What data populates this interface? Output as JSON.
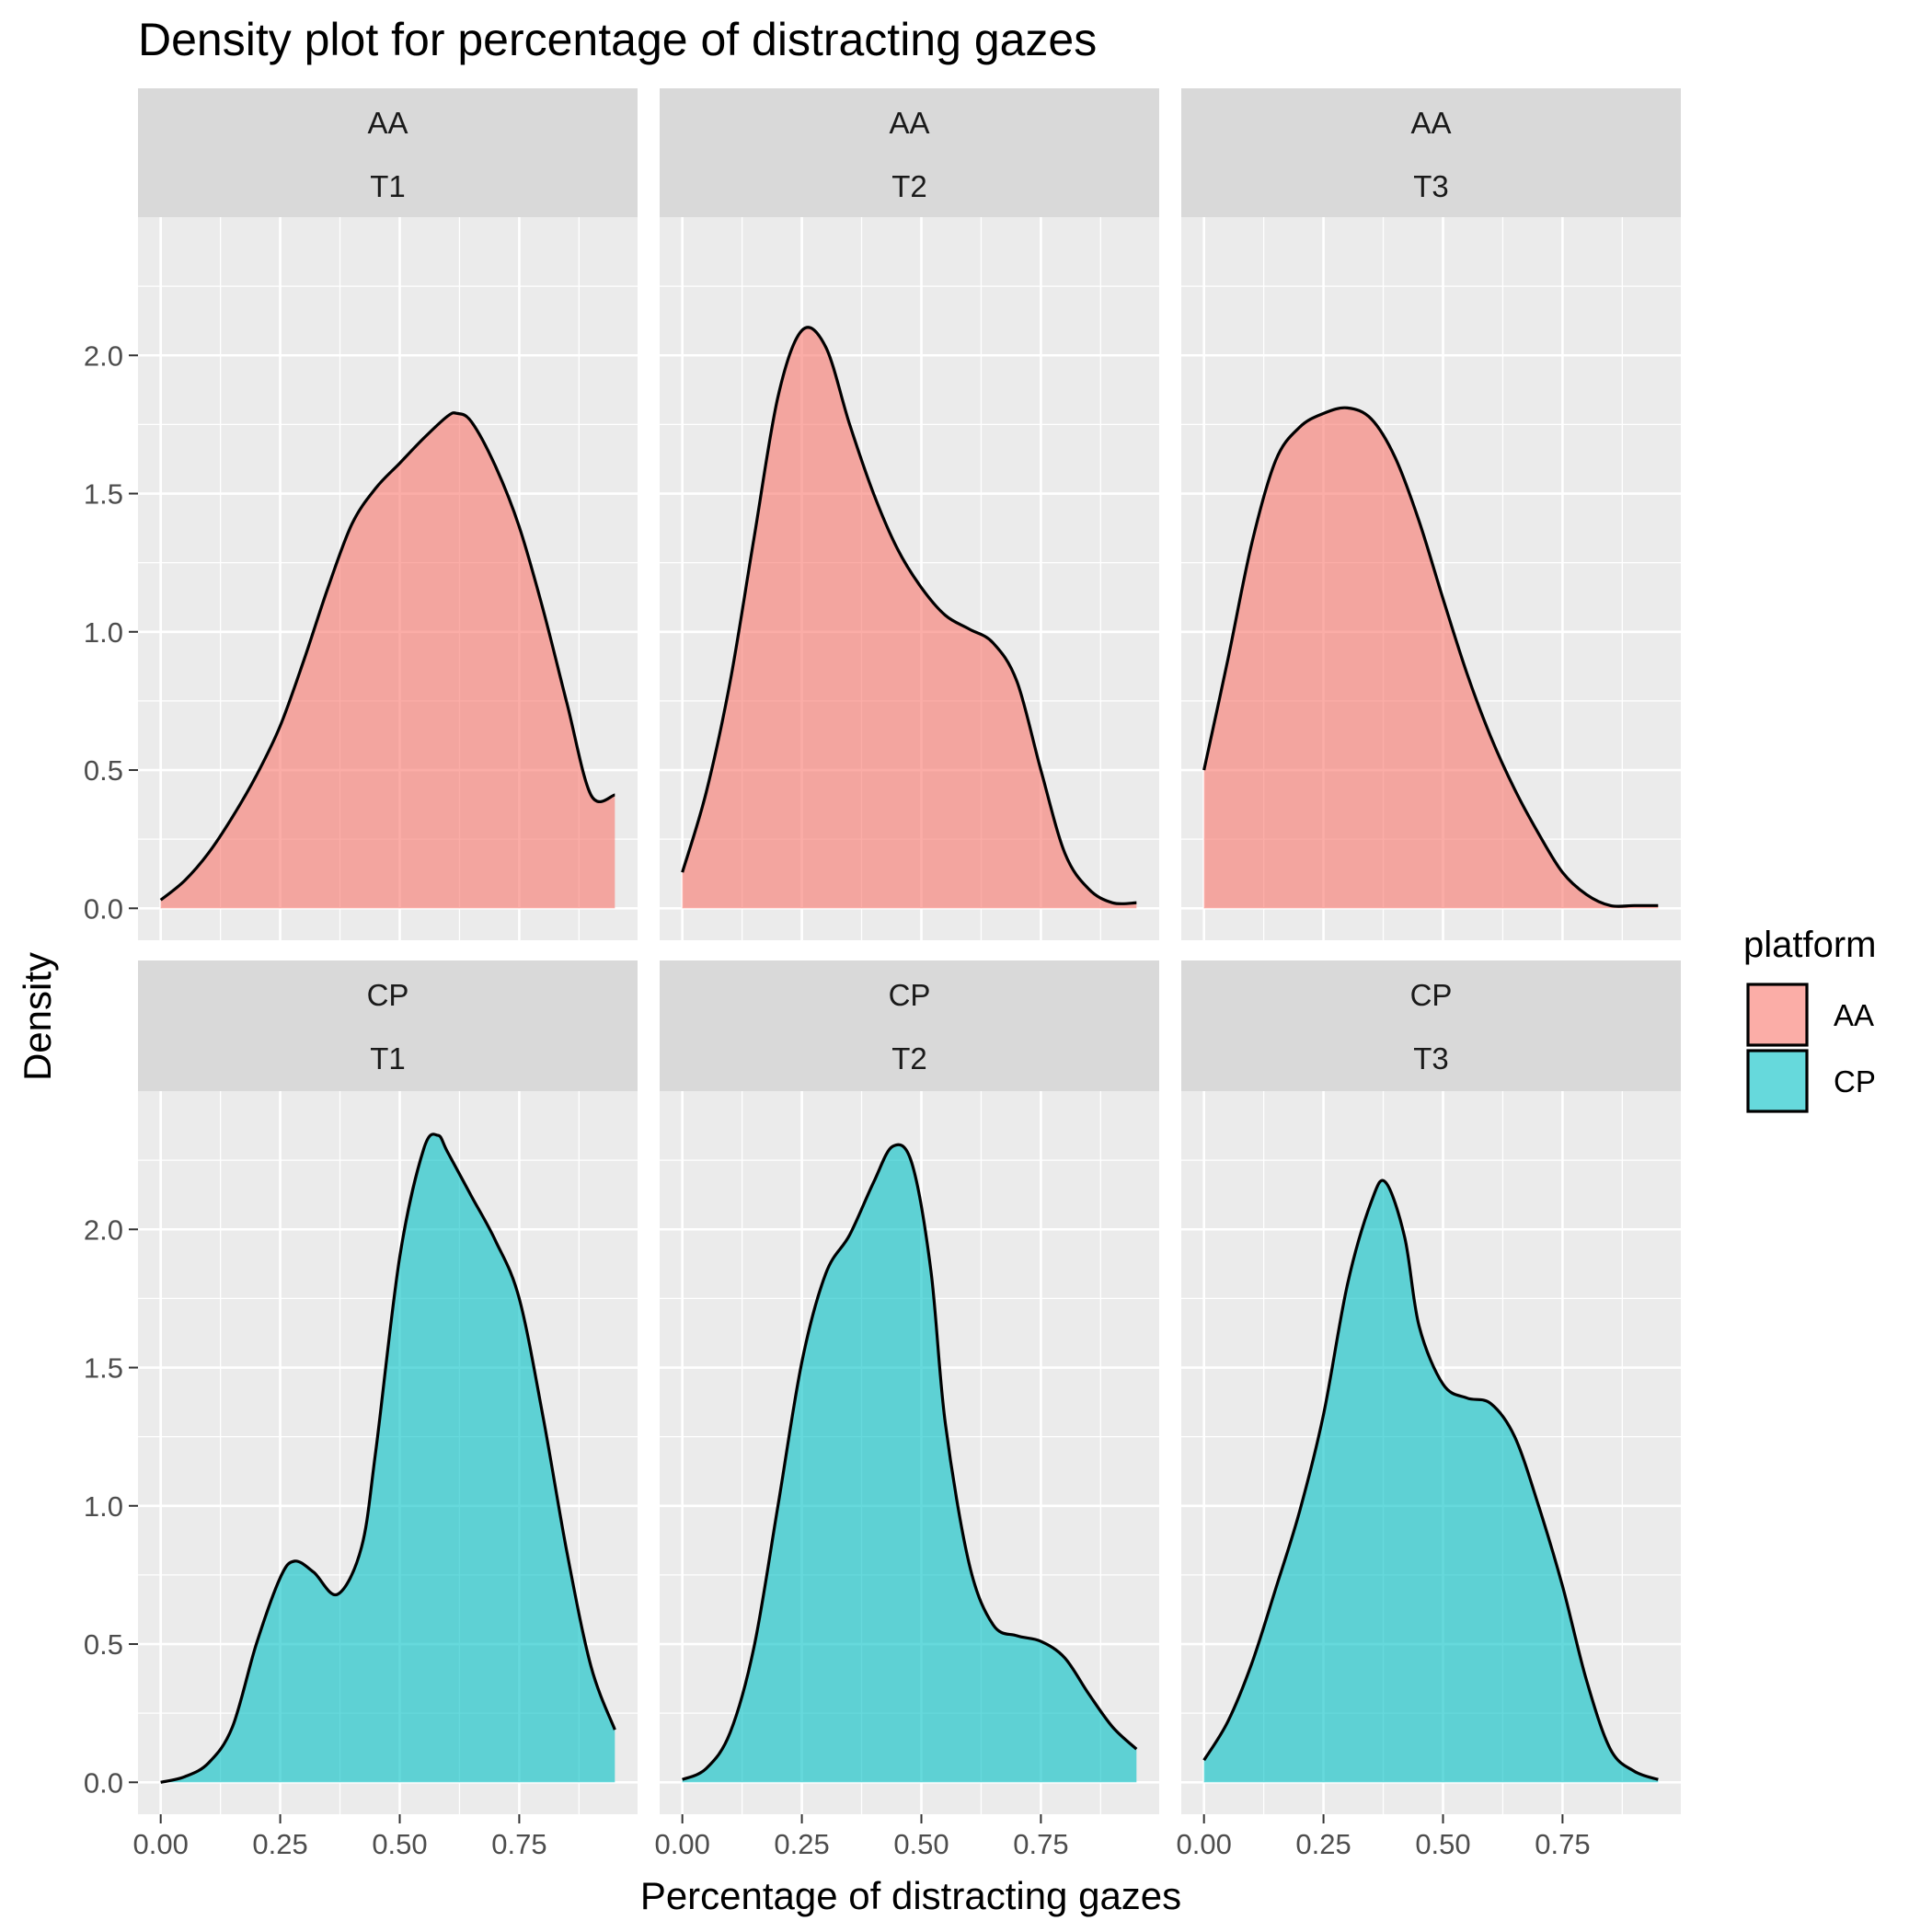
{
  "chart_data": {
    "type": "area",
    "title": "Density plot for percentage of distracting gazes",
    "xlabel": "Percentage of distracting gazes",
    "ylabel": "Density",
    "xlim": [
      -0.0475,
      0.9975
    ],
    "ylim": [
      -0.1155,
      2.5
    ],
    "x_ticks": [
      0.0,
      0.25,
      0.5,
      0.75
    ],
    "x_tick_labels": [
      "0.00",
      "0.25",
      "0.50",
      "0.75"
    ],
    "y_ticks": [
      0.0,
      0.5,
      1.0,
      1.5,
      2.0
    ],
    "y_tick_labels": [
      "0.0",
      "0.5",
      "1.0",
      "1.5",
      "2.0"
    ],
    "grid": true,
    "legend": {
      "title": "platform",
      "position": "right",
      "entries": [
        {
          "label": "AA",
          "color": "#f8766d"
        },
        {
          "label": "CP",
          "color": "#00bfc4"
        }
      ]
    },
    "colors": {
      "AA": "#f8766d",
      "CP": "#00bfc4",
      "outline": "#000000",
      "panel_bg": "#ebebeb",
      "strip_bg": "#d9d9d9"
    },
    "fill_alpha": 0.6,
    "panels": [
      {
        "platform": "AA",
        "trial": "T1",
        "row": 0,
        "col": 0,
        "x": [
          0.0,
          0.05,
          0.1,
          0.15,
          0.2,
          0.25,
          0.3,
          0.35,
          0.4,
          0.45,
          0.5,
          0.55,
          0.6,
          0.62,
          0.65,
          0.7,
          0.75,
          0.8,
          0.85,
          0.9,
          0.95
        ],
        "y": [
          0.03,
          0.1,
          0.2,
          0.33,
          0.48,
          0.66,
          0.9,
          1.16,
          1.39,
          1.52,
          1.61,
          1.7,
          1.78,
          1.79,
          1.76,
          1.6,
          1.38,
          1.08,
          0.74,
          0.41,
          0.41
        ]
      },
      {
        "platform": "AA",
        "trial": "T2",
        "row": 0,
        "col": 1,
        "x": [
          0.0,
          0.05,
          0.1,
          0.15,
          0.2,
          0.25,
          0.3,
          0.35,
          0.4,
          0.45,
          0.5,
          0.55,
          0.6,
          0.65,
          0.7,
          0.75,
          0.8,
          0.85,
          0.9,
          0.95
        ],
        "y": [
          0.13,
          0.42,
          0.82,
          1.34,
          1.85,
          2.09,
          2.03,
          1.75,
          1.5,
          1.3,
          1.16,
          1.06,
          1.01,
          0.96,
          0.82,
          0.5,
          0.2,
          0.07,
          0.02,
          0.02
        ]
      },
      {
        "platform": "AA",
        "trial": "T3",
        "row": 0,
        "col": 2,
        "x": [
          0.0,
          0.05,
          0.1,
          0.15,
          0.2,
          0.25,
          0.3,
          0.35,
          0.4,
          0.45,
          0.5,
          0.55,
          0.6,
          0.65,
          0.7,
          0.75,
          0.8,
          0.85,
          0.9,
          0.95
        ],
        "y": [
          0.5,
          0.9,
          1.32,
          1.62,
          1.74,
          1.79,
          1.81,
          1.77,
          1.63,
          1.4,
          1.12,
          0.85,
          0.62,
          0.43,
          0.27,
          0.13,
          0.05,
          0.01,
          0.01,
          0.01
        ]
      },
      {
        "platform": "CP",
        "trial": "T1",
        "row": 1,
        "col": 0,
        "x": [
          0.0,
          0.05,
          0.1,
          0.15,
          0.2,
          0.25,
          0.28,
          0.32,
          0.37,
          0.42,
          0.45,
          0.5,
          0.55,
          0.58,
          0.6,
          0.65,
          0.7,
          0.75,
          0.8,
          0.85,
          0.9,
          0.95
        ],
        "y": [
          0.0,
          0.02,
          0.07,
          0.2,
          0.5,
          0.74,
          0.8,
          0.76,
          0.68,
          0.85,
          1.2,
          1.9,
          2.29,
          2.34,
          2.28,
          2.12,
          1.96,
          1.75,
          1.32,
          0.83,
          0.42,
          0.19
        ]
      },
      {
        "platform": "CP",
        "trial": "T2",
        "row": 1,
        "col": 1,
        "x": [
          0.0,
          0.05,
          0.1,
          0.15,
          0.2,
          0.25,
          0.3,
          0.35,
          0.4,
          0.44,
          0.48,
          0.52,
          0.55,
          0.6,
          0.65,
          0.7,
          0.75,
          0.8,
          0.85,
          0.9,
          0.95
        ],
        "y": [
          0.01,
          0.05,
          0.18,
          0.49,
          1.0,
          1.52,
          1.84,
          1.98,
          2.17,
          2.3,
          2.24,
          1.85,
          1.3,
          0.79,
          0.57,
          0.53,
          0.51,
          0.45,
          0.32,
          0.2,
          0.12
        ]
      },
      {
        "platform": "CP",
        "trial": "T3",
        "row": 1,
        "col": 2,
        "x": [
          0.0,
          0.05,
          0.1,
          0.15,
          0.2,
          0.25,
          0.3,
          0.35,
          0.38,
          0.42,
          0.45,
          0.5,
          0.55,
          0.6,
          0.65,
          0.7,
          0.75,
          0.8,
          0.85,
          0.9,
          0.95
        ],
        "y": [
          0.08,
          0.22,
          0.43,
          0.7,
          0.98,
          1.33,
          1.8,
          2.1,
          2.17,
          1.97,
          1.65,
          1.44,
          1.39,
          1.37,
          1.25,
          1.0,
          0.71,
          0.37,
          0.12,
          0.04,
          0.01
        ]
      }
    ]
  }
}
